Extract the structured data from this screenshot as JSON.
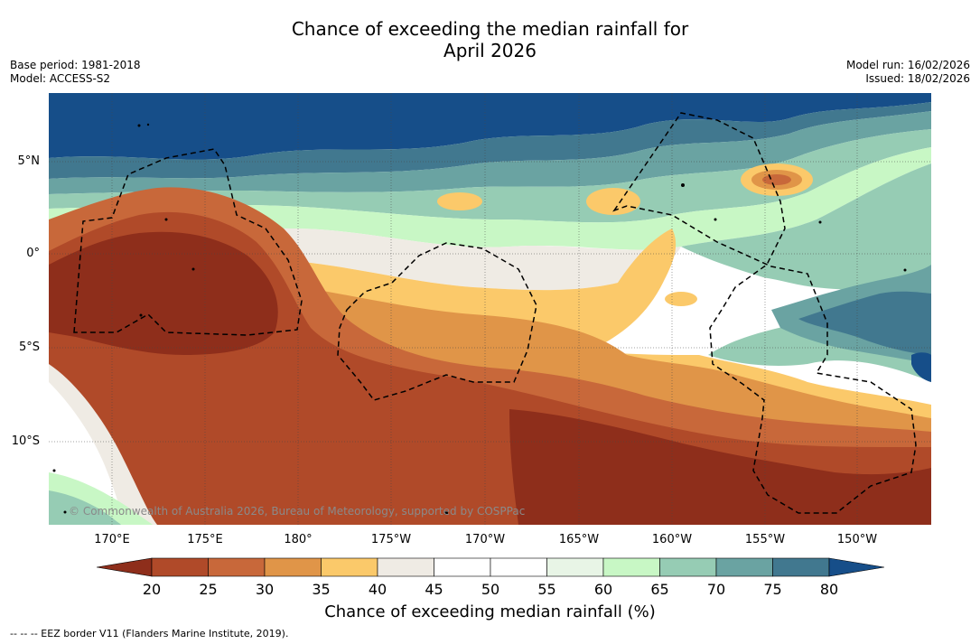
{
  "title": {
    "line1": "Chance of exceeding the median rainfall for",
    "line2": "April 2026"
  },
  "meta": {
    "base_period": "Base period: 1981-2018",
    "model": "Model: ACCESS-S2",
    "model_run": "Model run: 16/02/2026",
    "issued": "Issued: 18/02/2026"
  },
  "map": {
    "lat_labels": [
      "5°N",
      "0°",
      "5°S",
      "10°S"
    ],
    "lon_labels": [
      "170°E",
      "175°E",
      "180°",
      "175°W",
      "170°W",
      "165°W",
      "160°W",
      "155°W",
      "150°W"
    ],
    "copyright": "© Commonwealth of Australia 2026, Bureau of Meteorology, supported by COSPPac"
  },
  "colorbar": {
    "ticks": [
      "20",
      "25",
      "30",
      "35",
      "40",
      "45",
      "50",
      "55",
      "60",
      "65",
      "70",
      "75",
      "80"
    ],
    "label": "Chance of exceeding median rainfall (%)",
    "colors": [
      "#8e2e1b",
      "#b04a29",
      "#c8683a",
      "#e09548",
      "#fbc96a",
      "#efebe4",
      "#ffffff",
      "#ffffff",
      "#e8f5e6",
      "#c8f7c5",
      "#96ccb4",
      "#6aa3a2",
      "#41788f",
      "#164e89"
    ]
  },
  "footnote": "--  --  -- EEZ border V11 (Flanders Marine Institute, 2019)."
}
